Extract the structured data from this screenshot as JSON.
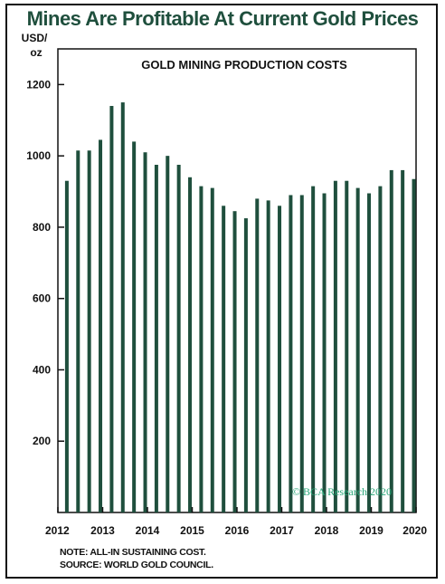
{
  "page": {
    "title": "Mines Are Profitable At Current Gold Prices",
    "note": "NOTE: ALL-IN SUSTAINING COST.",
    "source": "SOURCE: WORLD GOLD COUNCIL."
  },
  "colors": {
    "title": "#1f4f3d",
    "bar": "#1f4f3d",
    "axis": "#111111",
    "watermark": "#2aa87a"
  },
  "chart_data": {
    "type": "bar",
    "title": "GOLD MINING PRODUCTION COSTS",
    "ylabel": "USD/ oz",
    "ylabel_lines": [
      "USD/",
      "oz"
    ],
    "ylim": [
      0,
      1300
    ],
    "yticks": [
      200,
      400,
      600,
      800,
      1000,
      1200
    ],
    "xlim": [
      2012,
      2020
    ],
    "xticks": [
      "2012",
      "2013",
      "2014",
      "2015",
      "2016",
      "2017",
      "2018",
      "2019",
      "2020"
    ],
    "grid": false,
    "x": [
      2012.2,
      2012.45,
      2012.7,
      2012.95,
      2013.2,
      2013.45,
      2013.7,
      2013.95,
      2014.2,
      2014.45,
      2014.7,
      2014.95,
      2015.2,
      2015.45,
      2015.7,
      2015.95,
      2016.2,
      2016.45,
      2016.7,
      2016.95,
      2017.2,
      2017.45,
      2017.7,
      2017.95,
      2018.2,
      2018.45,
      2018.7,
      2018.95,
      2019.2,
      2019.45,
      2019.7,
      2019.95
    ],
    "values": [
      930,
      1015,
      1015,
      1045,
      1140,
      1150,
      1040,
      1010,
      975,
      1000,
      975,
      940,
      915,
      910,
      860,
      845,
      825,
      880,
      875,
      860,
      890,
      890,
      915,
      895,
      930,
      930,
      910,
      895,
      915,
      960,
      960,
      935
    ],
    "watermark": "© BCA Research 2020"
  }
}
